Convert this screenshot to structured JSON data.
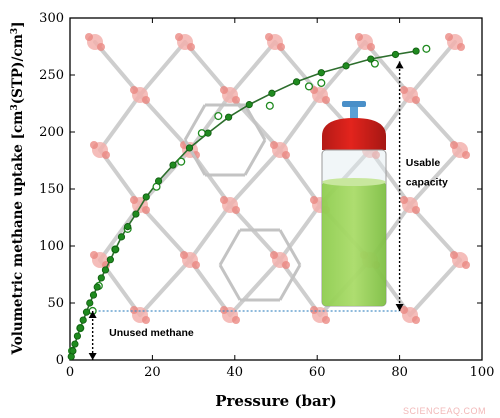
{
  "chart_data": {
    "type": "scatter",
    "xlabel": "Pressure (bar)",
    "ylabel_prefix": "Volumetric methane uptake [cm",
    "ylabel_sup1": "3",
    "ylabel_mid": "(STP)/cm",
    "ylabel_sup2": "3",
    "ylabel_suffix": "]",
    "xlim": [
      0,
      100
    ],
    "ylim": [
      0,
      300
    ],
    "xticks": [
      0,
      20,
      40,
      60,
      80,
      100
    ],
    "yticks": [
      0,
      50,
      100,
      150,
      200,
      250,
      300
    ],
    "grid": false,
    "series": [
      {
        "style": "filled-markers",
        "color": "#1f8a1f",
        "points": [
          [
            0.3,
            3
          ],
          [
            0.7,
            8
          ],
          [
            1.2,
            14
          ],
          [
            1.8,
            21
          ],
          [
            2.5,
            28
          ],
          [
            3.2,
            35
          ],
          [
            4.0,
            42
          ],
          [
            4.8,
            50
          ],
          [
            5.7,
            57
          ],
          [
            6.6,
            64
          ],
          [
            7.6,
            72
          ],
          [
            8.6,
            79
          ],
          [
            9.8,
            88
          ],
          [
            11.0,
            97
          ],
          [
            12.5,
            108
          ],
          [
            14.0,
            117
          ],
          [
            16.0,
            128
          ],
          [
            18.5,
            143
          ],
          [
            21.5,
            157
          ],
          [
            25.0,
            171
          ],
          [
            29.0,
            186
          ],
          [
            33.5,
            199
          ],
          [
            38.5,
            213
          ],
          [
            43.5,
            224
          ],
          [
            49.0,
            234
          ],
          [
            55.0,
            244
          ],
          [
            61.0,
            252
          ],
          [
            67.0,
            258
          ],
          [
            73.0,
            264
          ],
          [
            79.0,
            268
          ],
          [
            84.0,
            271
          ]
        ]
      },
      {
        "style": "open-markers",
        "color": "#1f8a1f",
        "points": [
          [
            0.5,
            8
          ],
          [
            2.5,
            28
          ],
          [
            5.5,
            43
          ],
          [
            7.0,
            65
          ],
          [
            11.0,
            97
          ],
          [
            14.0,
            115
          ],
          [
            21.0,
            152
          ],
          [
            27.0,
            174
          ],
          [
            32.0,
            199
          ],
          [
            36.0,
            214
          ],
          [
            48.5,
            223
          ],
          [
            58.0,
            240
          ],
          [
            61.0,
            243
          ],
          [
            74.0,
            260
          ],
          [
            86.5,
            273
          ]
        ]
      }
    ],
    "fit_curve": {
      "color": "#2d6e2d"
    },
    "reference_line": {
      "y": 43,
      "x_start": 5,
      "x_end": 80,
      "color": "#4a90c8",
      "style": "dotted"
    },
    "arrows": [
      {
        "x": 5.5,
        "y_from": 43,
        "y_to": 0
      },
      {
        "x": 80,
        "y_from": 43,
        "y_to": 262
      }
    ],
    "annotations": [
      {
        "text": "Unused methane",
        "x": 9.5,
        "y": 21
      },
      {
        "text": "Usable",
        "x": 81.5,
        "y": 170
      },
      {
        "text": "capacity",
        "x": 81.5,
        "y": 153
      }
    ]
  },
  "watermark": "SCIENCEAQ.COM"
}
